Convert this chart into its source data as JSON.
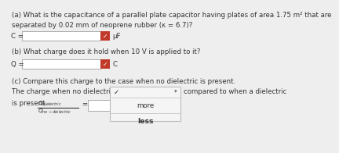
{
  "bg_color": "#eeeeee",
  "text_color": "#333333",
  "title_a": "(a) What is the capacitance of a parallel plate capacitor having plates of area 1.75 m² that are\nseparated by 0.02 mm of neoprene rubber (κ = 6.7)?",
  "label_c": "C =",
  "unit_c": "μF",
  "title_b": "(b) What charge does it hold when 10 V is applied to it?",
  "label_q": "Q =",
  "unit_q": "C",
  "title_c1": "(c) Compare this charge to the case when no dielectric is present.",
  "title_c2a": "The charge when no dielectric is present i",
  "title_c2b": "compared to when a dielectric",
  "title_c3": "is present.",
  "dropdown_more": "more",
  "dropdown_less": "less",
  "check_color": "#c0392b",
  "input_box_color": "#ffffff",
  "dropdown_bg": "#f5f5f5",
  "dropdown_border": "#bbbbbb",
  "check_mark": "✓"
}
